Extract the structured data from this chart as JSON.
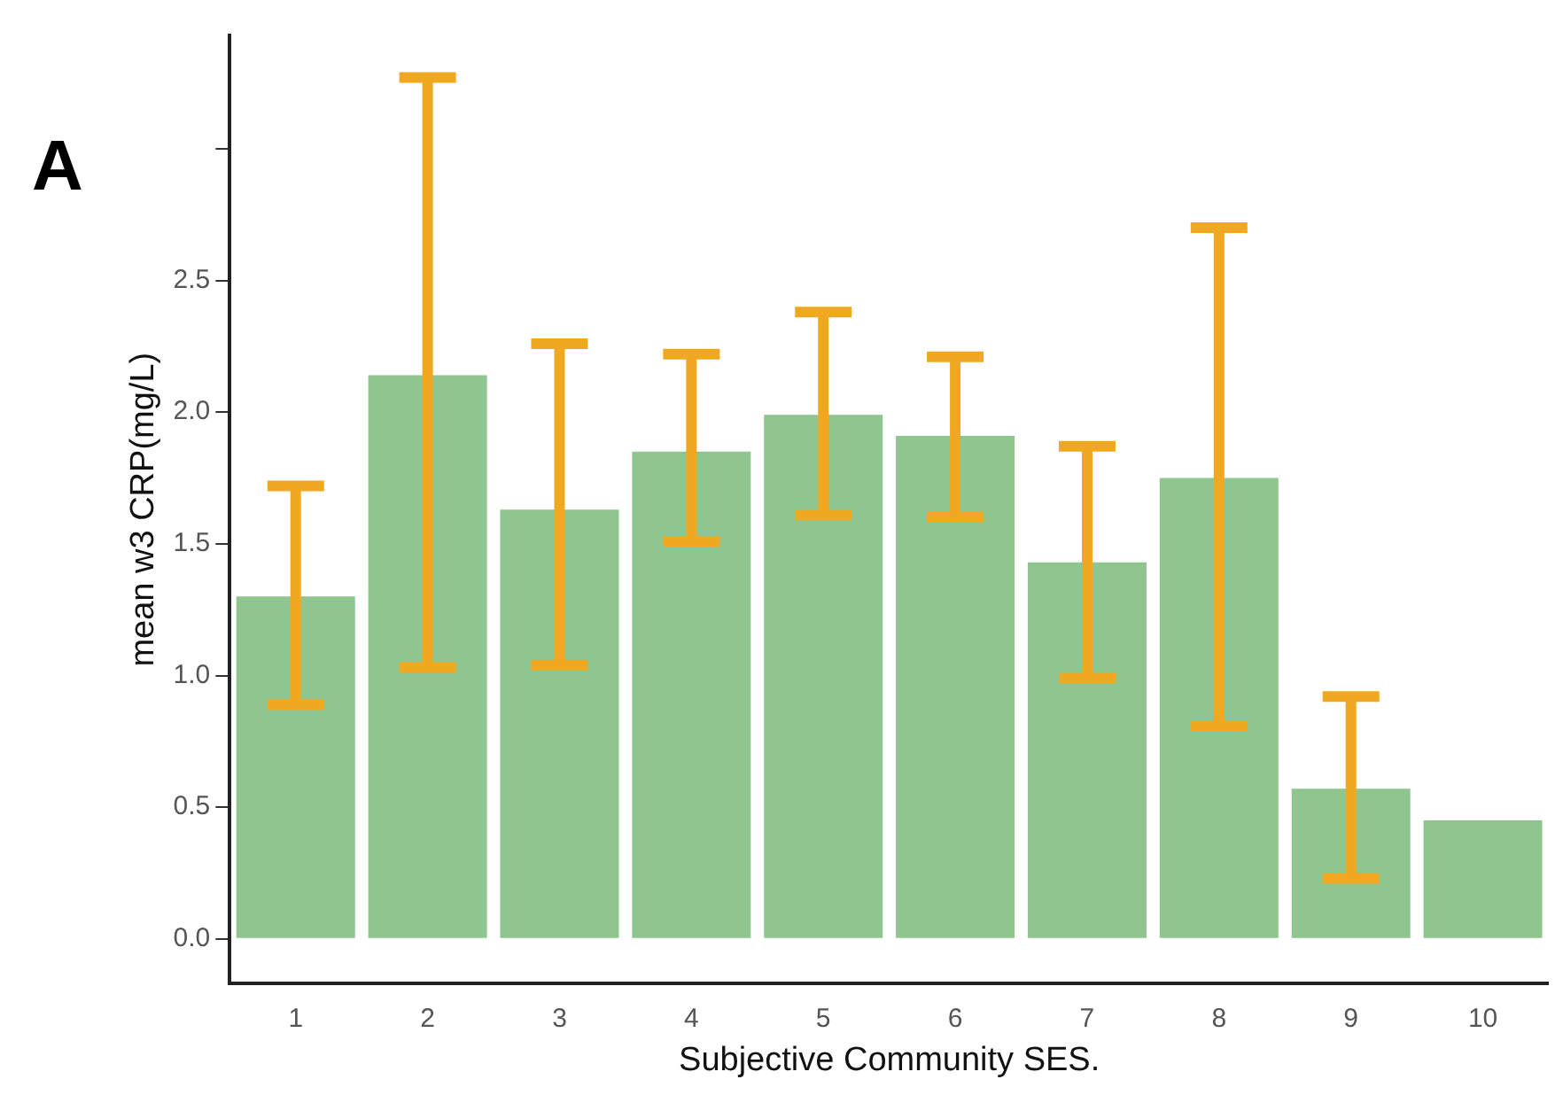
{
  "chart_data": {
    "type": "bar",
    "title": "A",
    "xlabel": "Subjective Community SES.",
    "ylabel": "mean w3 CRP(mg/L)",
    "categories": [
      "1",
      "2",
      "3",
      "4",
      "5",
      "6",
      "7",
      "8",
      "9",
      "10"
    ],
    "values": [
      1.3,
      2.14,
      1.63,
      1.85,
      1.99,
      1.91,
      1.43,
      1.75,
      0.57,
      0.45
    ],
    "errors": [
      [
        0.89,
        1.72
      ],
      [
        1.03,
        3.27
      ],
      [
        1.04,
        2.26
      ],
      [
        1.51,
        2.22
      ],
      [
        1.61,
        2.38
      ],
      [
        1.6,
        2.21
      ],
      [
        0.99,
        1.87
      ],
      [
        0.81,
        2.7
      ],
      [
        0.23,
        0.92
      ],
      null
    ],
    "color": "#8fc58e",
    "ylim": [
      -0.17,
      3.43
    ],
    "yticks": [
      {
        "value": 0,
        "label": "0.0"
      },
      0.5,
      {
        "value": 1,
        "label": "1.0"
      },
      1.5,
      {
        "value": 2,
        "label": "2.0"
      },
      2.5,
      {
        "value": 3,
        "label": null
      }
    ],
    "grid": false,
    "legend": false
  }
}
